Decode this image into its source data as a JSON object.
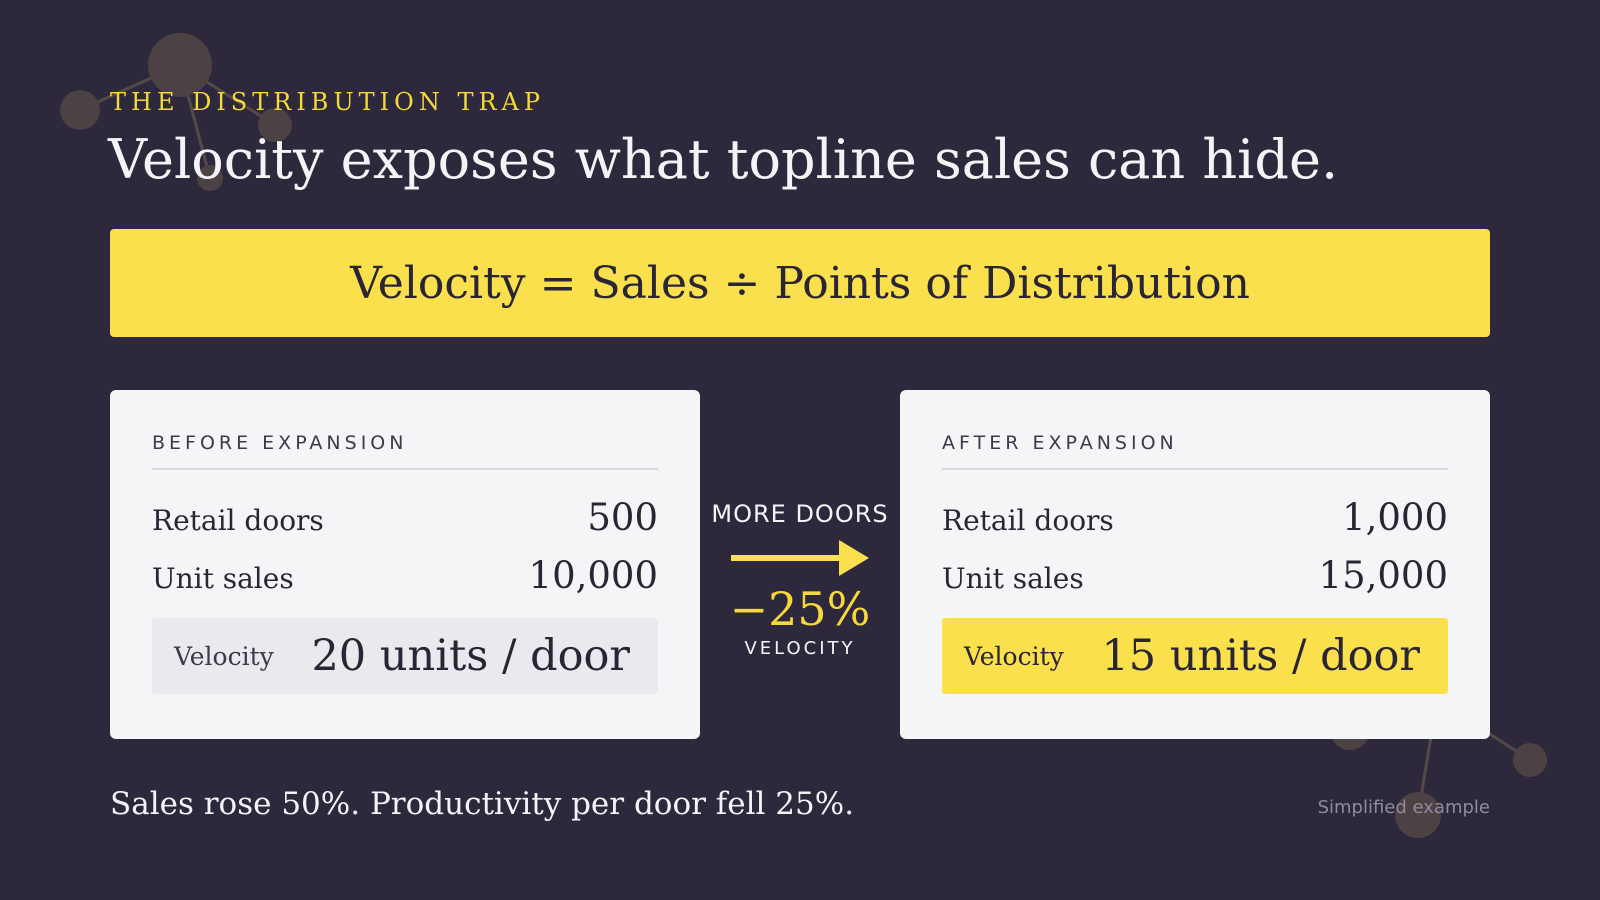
{
  "colors": {
    "background": "#2d283b",
    "accent_yellow": "#f9e04c",
    "card": "#f4f5f6",
    "text_dark": "#2a2535",
    "text_light": "#f4f4f6"
  },
  "eyebrow": "THE DISTRIBUTION TRAP",
  "headline": "Velocity exposes what topline sales can hide.",
  "formula": "Velocity = Sales ÷ Points of Distribution",
  "before": {
    "title": "BEFORE EXPANSION",
    "rows": [
      {
        "label": "Retail doors",
        "value": "500"
      },
      {
        "label": "Unit sales",
        "value": "10,000"
      }
    ],
    "velocity_label": "Velocity",
    "velocity_value": "20 units / door"
  },
  "transition": {
    "label": "MORE DOORS",
    "icon": "arrow-right-icon",
    "change": "−25%",
    "change_label": "VELOCITY"
  },
  "after": {
    "title": "AFTER EXPANSION",
    "rows": [
      {
        "label": "Retail doors",
        "value": "1,000"
      },
      {
        "label": "Unit sales",
        "value": "15,000"
      }
    ],
    "velocity_label": "Velocity",
    "velocity_value": "15 units / door"
  },
  "summary": "Sales rose 50%. Productivity per door fell 25%.",
  "footnote": "Simplified example"
}
